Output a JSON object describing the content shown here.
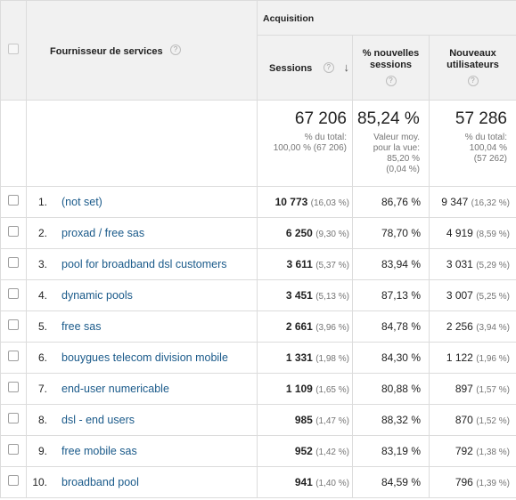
{
  "header": {
    "dimension_label": "Fournisseur de services",
    "group_label": "Acquisition",
    "col_sessions": "Sessions",
    "col_new_sessions": "% nouvelles sessions",
    "col_new_users": "Nouveaux utilisateurs",
    "help_glyph": "?",
    "sort_glyph": "↓"
  },
  "totals": {
    "sessions": {
      "value": "67 206",
      "line1": "% du total:",
      "line2": "100,00 % (67 206)"
    },
    "new_sessions": {
      "value": "85,24 %",
      "line1": "Valeur moy.",
      "line2": "pour la vue:",
      "line3": "85,20 %",
      "line4": "(0,04 %)"
    },
    "new_users": {
      "value": "57 286",
      "line1": "% du total:",
      "line2": "100,04 %",
      "line3": "(57 262)"
    }
  },
  "rows": [
    {
      "num": "1.",
      "name": "(not set)",
      "sessions": "10 773",
      "sessions_pct": "(16,03 %)",
      "new_sessions": "86,76 %",
      "new_users": "9 347",
      "new_users_pct": "(16,32 %)"
    },
    {
      "num": "2.",
      "name": "proxad / free sas",
      "sessions": "6 250",
      "sessions_pct": "(9,30 %)",
      "new_sessions": "78,70 %",
      "new_users": "4 919",
      "new_users_pct": "(8,59 %)"
    },
    {
      "num": "3.",
      "name": "pool for broadband dsl customers",
      "sessions": "3 611",
      "sessions_pct": "(5,37 %)",
      "new_sessions": "83,94 %",
      "new_users": "3 031",
      "new_users_pct": "(5,29 %)"
    },
    {
      "num": "4.",
      "name": "dynamic pools",
      "sessions": "3 451",
      "sessions_pct": "(5,13 %)",
      "new_sessions": "87,13 %",
      "new_users": "3 007",
      "new_users_pct": "(5,25 %)"
    },
    {
      "num": "5.",
      "name": "free sas",
      "sessions": "2 661",
      "sessions_pct": "(3,96 %)",
      "new_sessions": "84,78 %",
      "new_users": "2 256",
      "new_users_pct": "(3,94 %)"
    },
    {
      "num": "6.",
      "name": "bouygues telecom division mobile",
      "sessions": "1 331",
      "sessions_pct": "(1,98 %)",
      "new_sessions": "84,30 %",
      "new_users": "1 122",
      "new_users_pct": "(1,96 %)"
    },
    {
      "num": "7.",
      "name": "end-user numericable",
      "sessions": "1 109",
      "sessions_pct": "(1,65 %)",
      "new_sessions": "80,88 %",
      "new_users": "897",
      "new_users_pct": "(1,57 %)"
    },
    {
      "num": "8.",
      "name": "dsl - end users",
      "sessions": "985",
      "sessions_pct": "(1,47 %)",
      "new_sessions": "88,32 %",
      "new_users": "870",
      "new_users_pct": "(1,52 %)"
    },
    {
      "num": "9.",
      "name": "free mobile sas",
      "sessions": "952",
      "sessions_pct": "(1,42 %)",
      "new_sessions": "83,19 %",
      "new_users": "792",
      "new_users_pct": "(1,38 %)"
    },
    {
      "num": "10.",
      "name": "broadband pool",
      "sessions": "941",
      "sessions_pct": "(1,40 %)",
      "new_sessions": "84,59 %",
      "new_users": "796",
      "new_users_pct": "(1,39 %)"
    }
  ]
}
